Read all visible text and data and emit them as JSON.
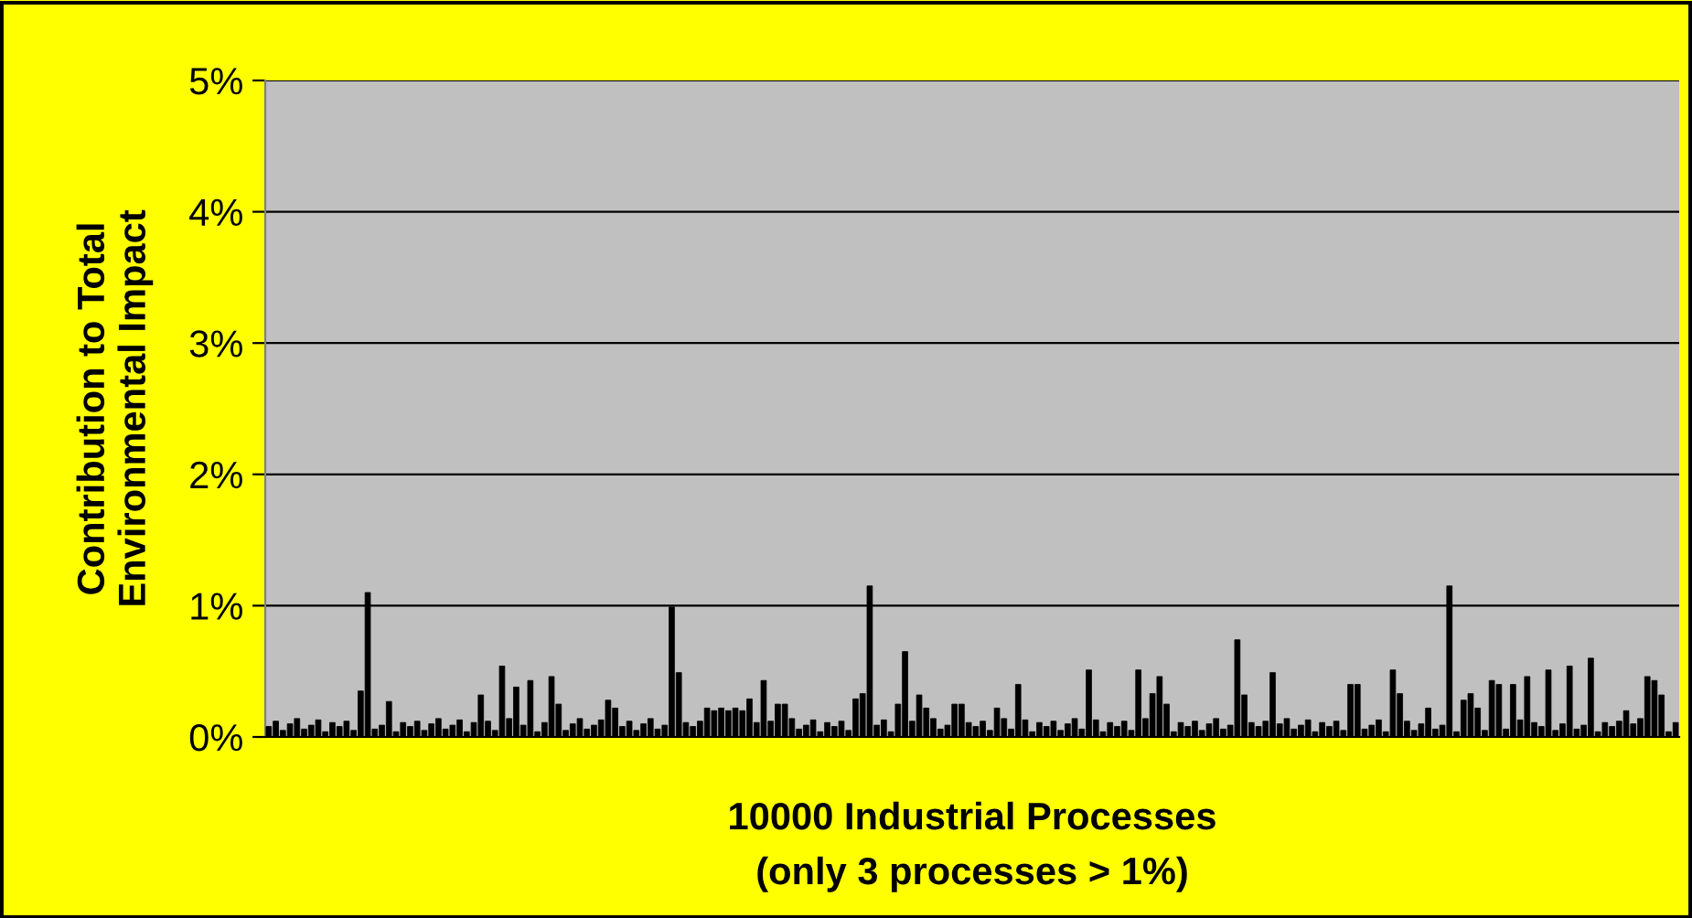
{
  "chart_data": {
    "type": "bar",
    "xlabel": "10000 Industrial Processes\n(only 3 processes > 1%)",
    "ylabel": "Contribution to Total\nEnvironmental Impact",
    "categories": [
      null,
      null,
      null,
      null,
      null,
      null,
      null,
      null,
      null,
      null,
      null,
      null,
      null,
      null,
      null,
      null,
      null,
      null,
      null,
      null,
      null,
      null,
      null,
      null,
      null,
      null,
      null,
      null,
      null,
      null,
      null,
      null,
      null,
      null,
      null,
      null,
      null,
      null,
      null,
      null,
      null,
      null,
      null,
      null,
      null,
      null,
      null,
      null,
      null,
      null,
      null,
      null,
      null,
      null,
      null,
      null,
      null,
      null,
      null,
      null,
      null,
      null,
      null,
      null,
      null,
      null,
      null,
      null,
      null,
      null,
      null,
      null,
      null,
      null,
      null,
      null,
      null,
      null,
      null,
      null,
      null,
      null,
      null,
      null,
      null,
      null,
      null,
      null,
      null,
      null,
      null,
      null,
      null,
      null,
      null,
      null,
      null,
      null,
      null,
      null,
      null,
      null,
      null,
      null,
      null,
      null,
      null,
      null,
      null,
      null,
      null,
      null,
      null,
      null,
      null,
      null,
      null,
      null,
      null,
      null,
      null,
      null,
      null,
      null,
      null,
      null,
      null,
      null,
      null,
      null,
      null,
      null,
      null,
      null,
      null,
      null,
      null,
      null,
      null,
      null,
      null,
      null,
      null,
      null,
      null,
      null,
      null,
      null,
      null,
      null,
      null,
      null,
      null,
      null,
      null,
      null,
      null,
      null,
      null,
      null,
      null,
      null,
      null,
      null,
      null,
      null,
      null,
      null,
      null,
      null,
      null,
      null,
      null,
      null,
      null,
      null,
      null,
      null,
      null,
      null,
      null,
      null,
      null,
      null,
      null,
      null,
      null,
      null,
      null,
      null,
      null,
      null,
      null,
      null,
      null,
      null,
      null,
      null,
      null,
      null
    ],
    "values": [
      0.08,
      0.12,
      0.05,
      0.1,
      0.14,
      0.06,
      0.09,
      0.13,
      0.04,
      0.11,
      0.08,
      0.12,
      0.05,
      0.35,
      1.1,
      0.06,
      0.09,
      0.27,
      0.04,
      0.11,
      0.08,
      0.12,
      0.05,
      0.1,
      0.14,
      0.06,
      0.09,
      0.13,
      0.04,
      0.11,
      0.32,
      0.12,
      0.05,
      0.54,
      0.14,
      0.38,
      0.09,
      0.43,
      0.04,
      0.11,
      0.46,
      0.25,
      0.05,
      0.1,
      0.14,
      0.06,
      0.09,
      0.13,
      0.28,
      0.22,
      0.08,
      0.12,
      0.05,
      0.1,
      0.14,
      0.06,
      0.09,
      0.99,
      0.49,
      0.11,
      0.08,
      0.12,
      0.22,
      0.2,
      0.22,
      0.2,
      0.22,
      0.2,
      0.29,
      0.11,
      0.43,
      0.12,
      0.25,
      0.25,
      0.14,
      0.06,
      0.09,
      0.13,
      0.04,
      0.11,
      0.08,
      0.12,
      0.05,
      0.29,
      0.33,
      1.15,
      0.09,
      0.13,
      0.04,
      0.25,
      0.65,
      0.12,
      0.32,
      0.22,
      0.14,
      0.06,
      0.09,
      0.25,
      0.25,
      0.11,
      0.08,
      0.12,
      0.05,
      0.22,
      0.14,
      0.06,
      0.4,
      0.13,
      0.04,
      0.11,
      0.08,
      0.12,
      0.05,
      0.1,
      0.14,
      0.06,
      0.51,
      0.13,
      0.04,
      0.11,
      0.08,
      0.12,
      0.05,
      0.51,
      0.14,
      0.33,
      0.46,
      0.25,
      0.04,
      0.11,
      0.08,
      0.12,
      0.05,
      0.1,
      0.14,
      0.06,
      0.09,
      0.74,
      0.32,
      0.11,
      0.08,
      0.12,
      0.49,
      0.1,
      0.14,
      0.06,
      0.09,
      0.13,
      0.04,
      0.11,
      0.08,
      0.12,
      0.05,
      0.4,
      0.4,
      0.06,
      0.09,
      0.13,
      0.04,
      0.51,
      0.33,
      0.12,
      0.05,
      0.1,
      0.22,
      0.06,
      0.09,
      1.15,
      0.04,
      0.28,
      0.33,
      0.22,
      0.05,
      0.43,
      0.4,
      0.06,
      0.4,
      0.13,
      0.46,
      0.11,
      0.08,
      0.51,
      0.05,
      0.1,
      0.54,
      0.06,
      0.09,
      0.6,
      0.04,
      0.11,
      0.08,
      0.12,
      0.2,
      0.1,
      0.14,
      0.46,
      0.43,
      0.32,
      0.04,
      0.11
    ],
    "color": "#000000",
    "ylim": [
      0,
      5
    ],
    "yticks": [
      {
        "value": 0,
        "label": "0%"
      },
      {
        "value": 1,
        "label": "1%"
      },
      {
        "value": 2,
        "label": "2%"
      },
      {
        "value": 3,
        "label": "3%"
      },
      {
        "value": 4,
        "label": "4%"
      },
      {
        "value": 5,
        "label": "5%"
      }
    ],
    "grid": "y",
    "tick_labels": "y"
  }
}
